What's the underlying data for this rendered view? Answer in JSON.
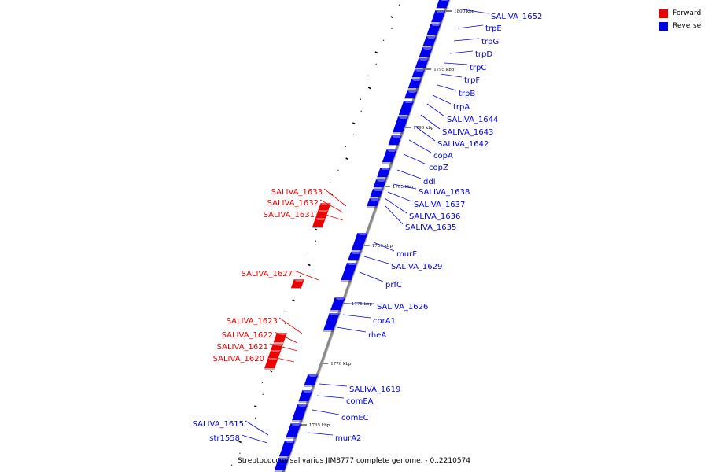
{
  "colors": {
    "forward": "#ee0000",
    "reverse": "#0000ee",
    "backbone": "#888888"
  },
  "legend": {
    "forward_label": "Forward",
    "reverse_label": "Reverse"
  },
  "caption": "Streptococcus salivarius JIM8777 complete genome. - 0..2210574",
  "tick_labels": [
    "1800 kbp",
    "1795 kbp",
    "1790 kbp",
    "1785 kbp",
    "1780 kbp",
    "1775 kbp",
    "1770 kbp",
    "1765 kbp"
  ],
  "reverse_genes": [
    "SALIVA_1652",
    "trpE",
    "trpG",
    "trpD",
    "trpC",
    "trpF",
    "trpB",
    "trpA",
    "SALIVA_1644",
    "SALIVA_1643",
    "SALIVA_1642",
    "copA",
    "copZ",
    "ddl",
    "SALIVA_1638",
    "SALIVA_1637",
    "SALIVA_1636",
    "SALIVA_1635",
    "murF",
    "SALIVA_1629",
    "prfC",
    "SALIVA_1626",
    "corA1",
    "rheA",
    "SALIVA_1619",
    "comEA",
    "comEC",
    "murA2"
  ],
  "forward_genes": [
    "SALIVA_1633",
    "SALIVA_1632",
    "SALIVA_1631",
    "SALIVA_1627",
    "SALIVA_1623",
    "SALIVA_1622",
    "SALIVA_1621",
    "SALIVA_1620"
  ],
  "other_labels": [
    "SALIVA_1615",
    "str1558"
  ]
}
